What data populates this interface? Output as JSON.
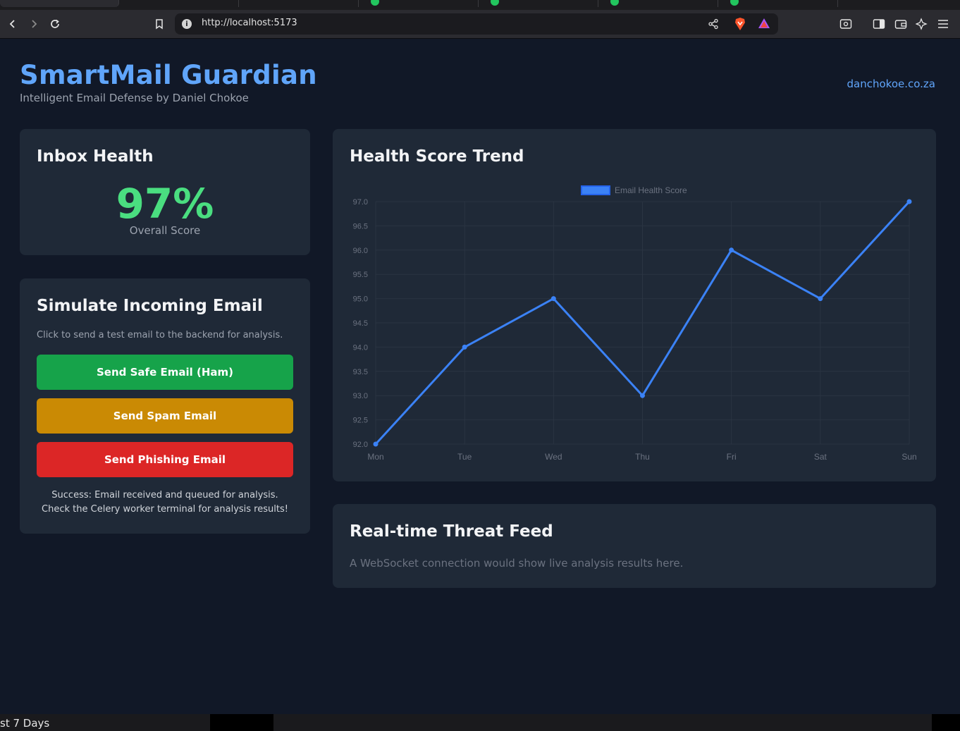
{
  "browser": {
    "url": "http://localhost:5173"
  },
  "header": {
    "title": "SmartMail Guardian",
    "subtitle": "Intelligent Email Defense by Daniel Chokoe",
    "link": "danchokoe.co.za"
  },
  "inbox_health": {
    "heading": "Inbox Health",
    "score": "97%",
    "score_label": "Overall Score"
  },
  "simulate": {
    "heading": "Simulate Incoming Email",
    "hint": "Click to send a test email to the backend for analysis.",
    "safe_label": "Send Safe Email (Ham)",
    "spam_label": "Send Spam Email",
    "phishing_label": "Send Phishing Email",
    "status": "Success: Email received and queued for analysis. Check the Celery worker terminal for analysis results!"
  },
  "trend": {
    "heading": "Health Score Trend"
  },
  "chart_data": {
    "type": "line",
    "x": [
      "Mon",
      "Tue",
      "Wed",
      "Thu",
      "Fri",
      "Sat",
      "Sun"
    ],
    "series": [
      {
        "name": "Email Health Score",
        "values": [
          92,
          94,
          95,
          93,
          96,
          95,
          97
        ]
      }
    ],
    "ylim": [
      92.0,
      97.0
    ],
    "yticks": [
      "97.0",
      "96.5",
      "96.0",
      "95.5",
      "95.0",
      "94.5",
      "94.0",
      "93.5",
      "93.0",
      "92.5",
      "92.0"
    ],
    "grid": true,
    "legend": "top-center"
  },
  "feed": {
    "heading": "Real-time Threat Feed",
    "text": "A WebSocket connection would show live analysis results here."
  },
  "taskbar": {
    "label": "st 7 Days"
  },
  "colors": {
    "accent": "#60a5fa",
    "score": "#4ade80",
    "safe": "#16a34a",
    "spam": "#ca8a04",
    "phishing": "#dc2626",
    "line": "#3b82f6"
  }
}
